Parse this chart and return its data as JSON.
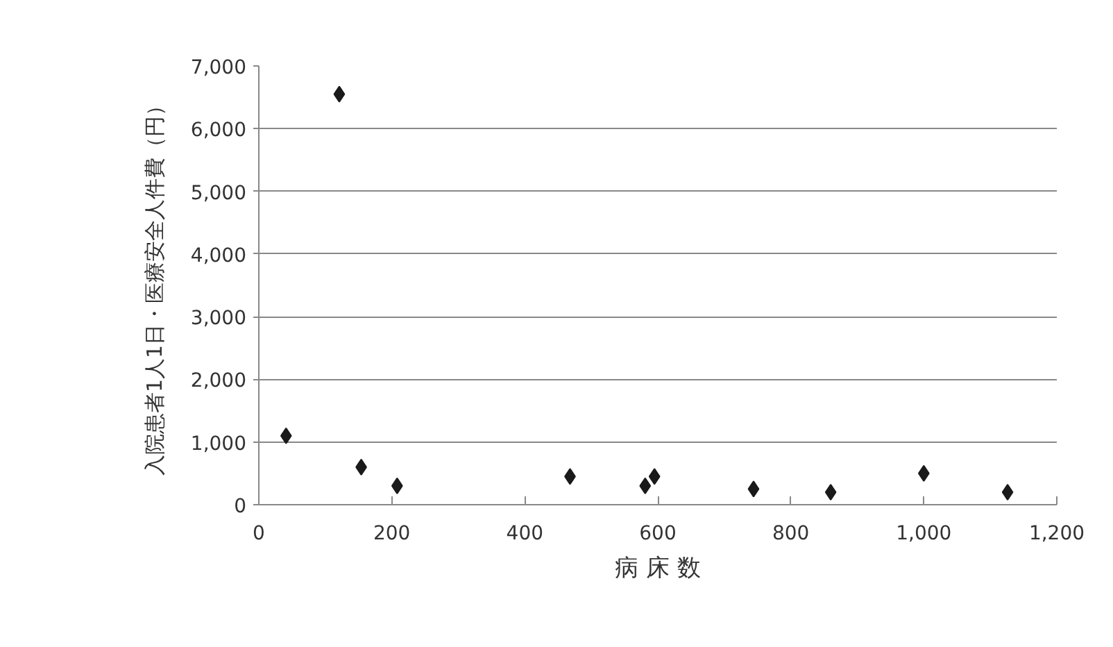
{
  "chart_data": {
    "type": "scatter",
    "xlabel": "病 床 数",
    "ylabel": "入院患者1人1日・医療安全人件費（円）",
    "x": [
      41,
      121,
      154,
      208,
      468,
      581,
      595,
      744,
      860,
      1000,
      1126
    ],
    "series": [
      {
        "color": "#1a1a1a",
        "values": [
          1100,
          6550,
          600,
          300,
          450,
          300,
          450,
          250,
          200,
          500,
          200
        ]
      }
    ],
    "xlim": [
      0,
      1200
    ],
    "xticks": [
      0,
      200,
      400,
      {
        "value": 600,
        "label": "600"
      },
      800,
      {
        "value": 1000,
        "label": "1,000"
      },
      {
        "value": 1200,
        "label": "1,200"
      }
    ],
    "ylim": [
      0,
      7000
    ],
    "yticks": [
      0,
      {
        "value": 1000,
        "label": "1,000"
      },
      {
        "value": 2000,
        "label": "2,000"
      },
      {
        "value": 3000,
        "label": "3,000"
      },
      {
        "value": 4000,
        "label": "4,000"
      },
      {
        "value": 5000,
        "label": "5,000"
      },
      {
        "value": 6000,
        "label": "6,000"
      },
      {
        "value": 7000,
        "label": "7,000"
      }
    ],
    "grid": "y",
    "marker": "diamond"
  }
}
